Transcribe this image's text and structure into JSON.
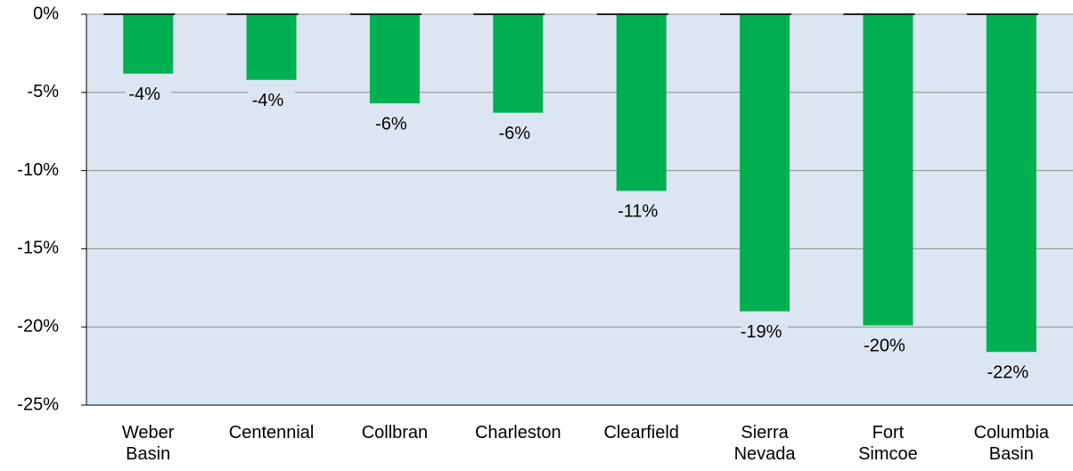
{
  "chart_data": {
    "type": "bar",
    "categories": [
      "Weber Basin",
      "Centennial",
      "Collbran",
      "Charleston",
      "Clearfield",
      "Sierra Nevada",
      "Fort Simcoe",
      "Columbia Basin"
    ],
    "values": [
      -3.8,
      -4.2,
      -5.7,
      -6.3,
      -11.3,
      -19.0,
      -19.9,
      -21.6
    ],
    "value_labels": [
      "-4%",
      "-4%",
      "-6%",
      "-6%",
      "-11%",
      "-19%",
      "-20%",
      "-22%"
    ],
    "color": "#00b050",
    "ylim": [
      -25,
      0
    ],
    "yticks": [
      {
        "value": 0,
        "label": "0%"
      },
      {
        "value": -5,
        "label": "-5%"
      },
      {
        "value": -10,
        "label": "-10%"
      },
      {
        "value": -15,
        "label": "-15%"
      },
      {
        "value": -20,
        "label": "-20%"
      },
      {
        "value": -25,
        "label": "-25%"
      }
    ],
    "grid": true
  }
}
